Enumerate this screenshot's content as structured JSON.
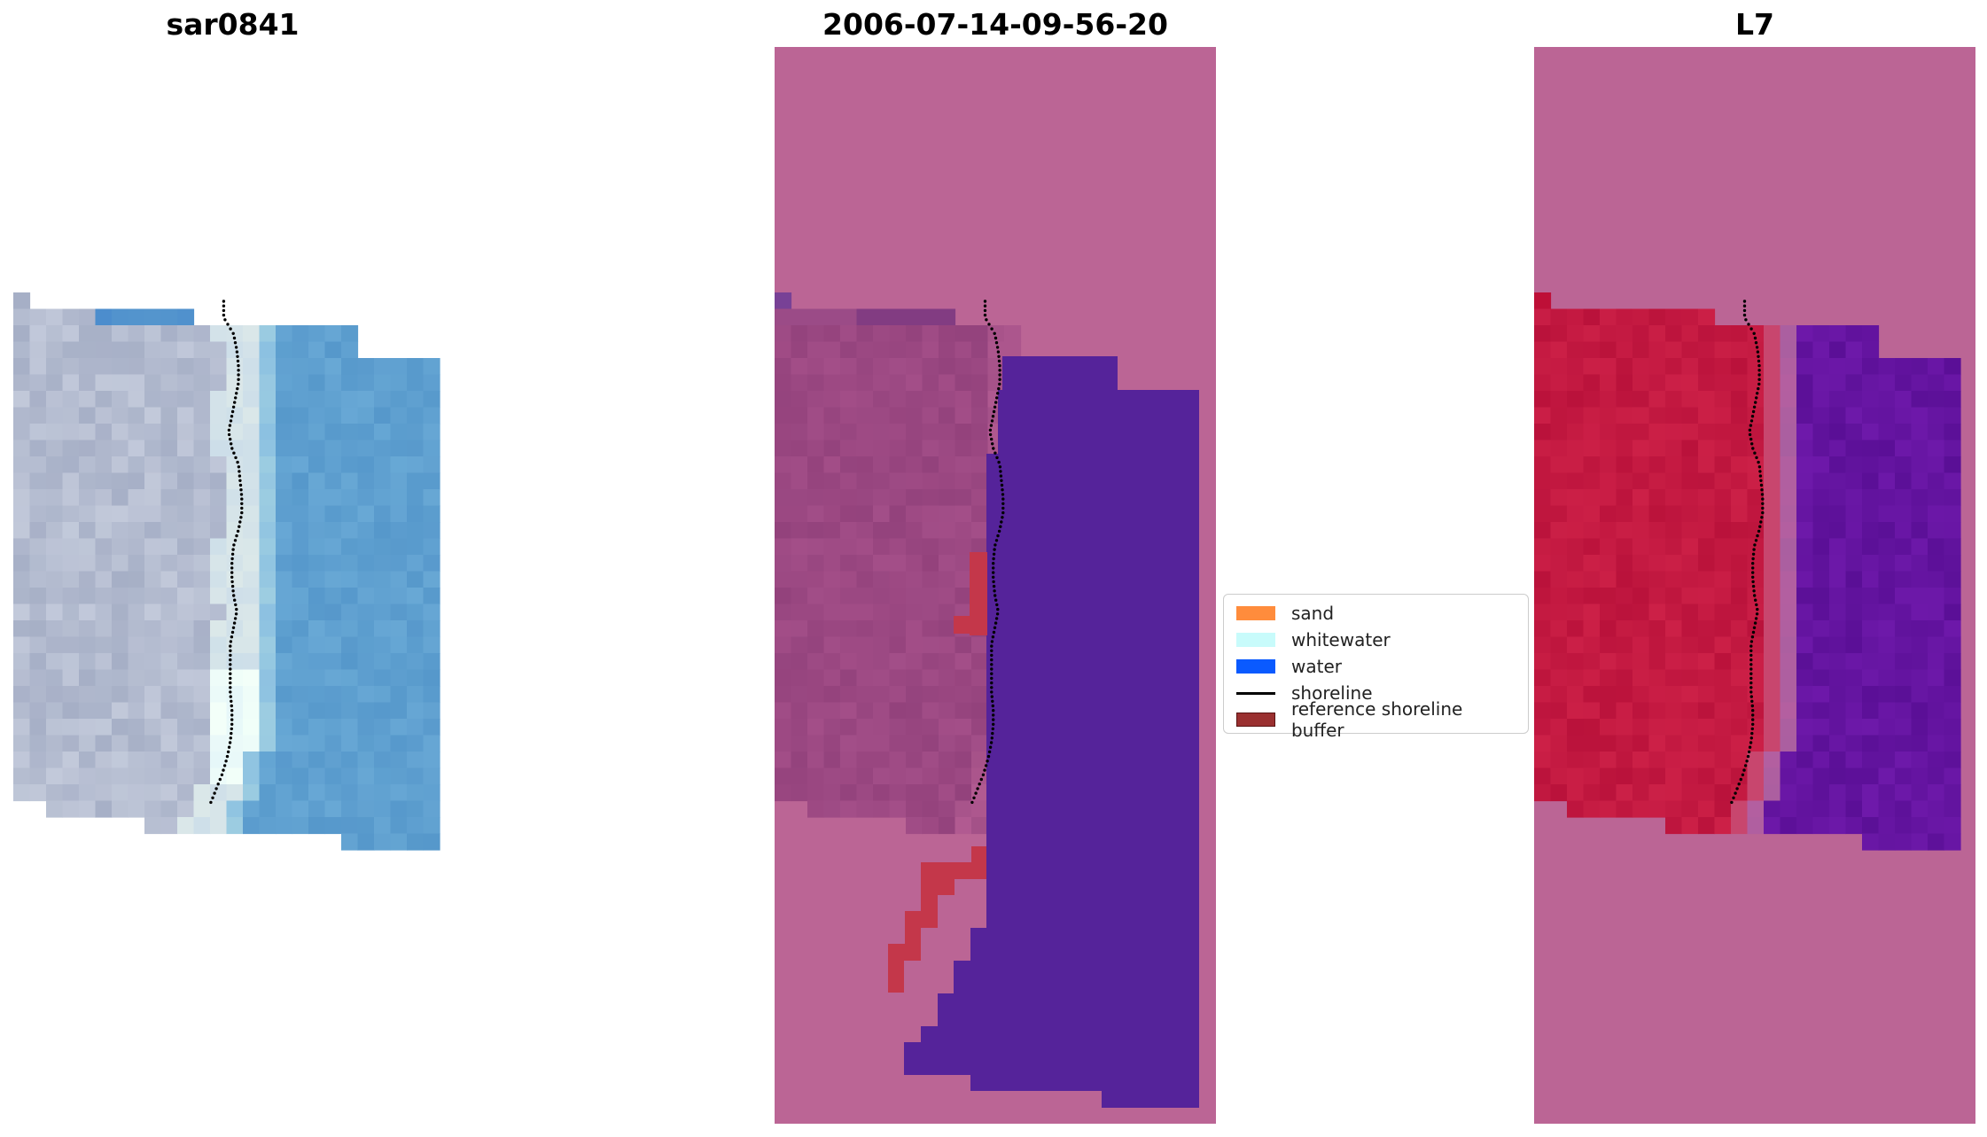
{
  "titles": {
    "left": "sar0841",
    "middle": "2006-07-14-09-56-20",
    "right": "L7"
  },
  "legend": {
    "items": [
      {
        "label": "sand",
        "color": "#ff8c3c",
        "kind": "patch"
      },
      {
        "label": "whitewater",
        "color": "#c8fbfb",
        "kind": "patch"
      },
      {
        "label": "water",
        "color": "#0a5aff",
        "kind": "patch"
      },
      {
        "label": "shoreline",
        "color": "#000000",
        "kind": "line"
      },
      {
        "label": "reference shoreline buffer",
        "color": "#9a3030",
        "kind": "patch-edged"
      }
    ]
  },
  "colors": {
    "nodata_pink": "#bb6595",
    "water_purple": "#55239a",
    "buffer_red": "#c4374a",
    "sand_mauve": "#9c4a86",
    "rgb_water": "#5e9fcf",
    "rgb_beach": "#b6bccd",
    "ndwi_land": "#c01a45",
    "ndwi_water": "#6a1a9c"
  }
}
